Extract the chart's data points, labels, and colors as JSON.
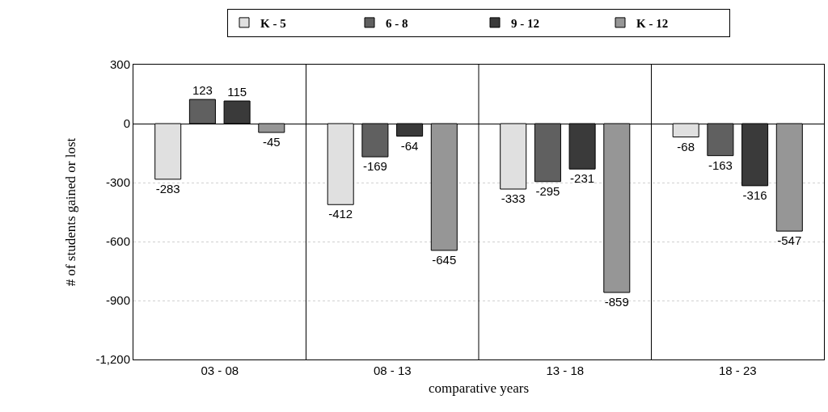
{
  "chart_data": {
    "type": "bar",
    "xlabel": "comparative years",
    "ylabel": "# of students gained or lost",
    "categories": [
      "03 - 08",
      "08 - 13",
      "13 - 18",
      "18 - 23"
    ],
    "series": [
      {
        "name": "K - 5",
        "color": "#e0e0e0",
        "values": [
          -283,
          -412,
          -333,
          -68
        ]
      },
      {
        "name": "6 - 8",
        "color": "#606060",
        "values": [
          123,
          -169,
          -295,
          -163
        ]
      },
      {
        "name": "9 - 12",
        "color": "#3a3a3a",
        "values": [
          115,
          -64,
          -231,
          -316
        ]
      },
      {
        "name": "K - 12",
        "color": "#969696",
        "values": [
          -45,
          -645,
          -859,
          -547
        ]
      }
    ],
    "ylim": [
      -1200,
      300
    ],
    "yticks": [
      {
        "value": -1200,
        "label": "-1,200"
      },
      -900,
      -600,
      -300,
      0,
      300
    ],
    "grid": true,
    "legend": "top",
    "data_labels": true
  }
}
